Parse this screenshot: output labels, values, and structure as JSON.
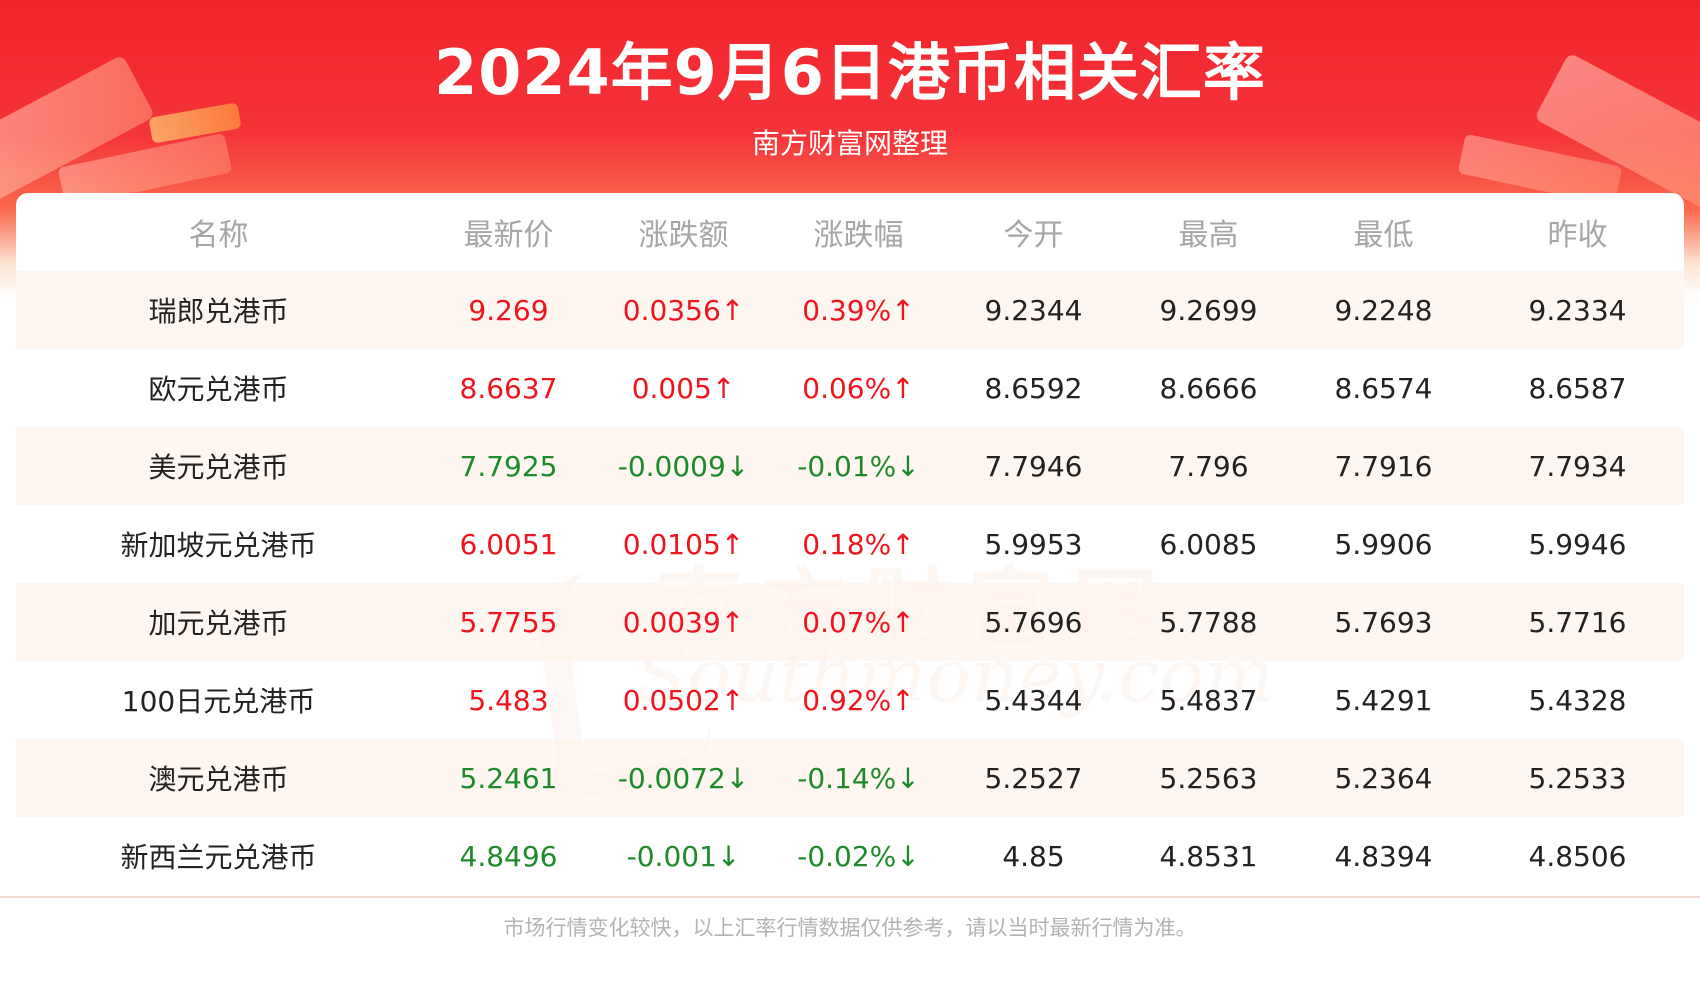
{
  "header": {
    "title": "2024年9月6日港币相关汇率",
    "subtitle": "南方财富网整理"
  },
  "table": {
    "columns": [
      "名称",
      "最新价",
      "涨跌额",
      "涨跌幅",
      "今开",
      "最高",
      "最低",
      "昨收"
    ],
    "rows": [
      {
        "name": "瑞郎兑港币",
        "latest": "9.269",
        "change": "0.0356↑",
        "pct": "0.39%↑",
        "open": "9.2344",
        "high": "9.2699",
        "low": "9.2248",
        "prev_close": "9.2334",
        "trend": "up"
      },
      {
        "name": "欧元兑港币",
        "latest": "8.6637",
        "change": "0.005↑",
        "pct": "0.06%↑",
        "open": "8.6592",
        "high": "8.6666",
        "low": "8.6574",
        "prev_close": "8.6587",
        "trend": "up"
      },
      {
        "name": "美元兑港币",
        "latest": "7.7925",
        "change": "-0.0009↓",
        "pct": "-0.01%↓",
        "open": "7.7946",
        "high": "7.796",
        "low": "7.7916",
        "prev_close": "7.7934",
        "trend": "down"
      },
      {
        "name": "新加坡元兑港币",
        "latest": "6.0051",
        "change": "0.0105↑",
        "pct": "0.18%↑",
        "open": "5.9953",
        "high": "6.0085",
        "low": "5.9906",
        "prev_close": "5.9946",
        "trend": "up"
      },
      {
        "name": "加元兑港币",
        "latest": "5.7755",
        "change": "0.0039↑",
        "pct": "0.07%↑",
        "open": "5.7696",
        "high": "5.7788",
        "low": "5.7693",
        "prev_close": "5.7716",
        "trend": "up"
      },
      {
        "name": "100日元兑港币",
        "latest": "5.483",
        "change": "0.0502↑",
        "pct": "0.92%↑",
        "open": "5.4344",
        "high": "5.4837",
        "low": "5.4291",
        "prev_close": "5.4328",
        "trend": "up"
      },
      {
        "name": "澳元兑港币",
        "latest": "5.2461",
        "change": "-0.0072↓",
        "pct": "-0.14%↓",
        "open": "5.2527",
        "high": "5.2563",
        "low": "5.2364",
        "prev_close": "5.2533",
        "trend": "down"
      },
      {
        "name": "新西兰元兑港币",
        "latest": "4.8496",
        "change": "-0.001↓",
        "pct": "-0.02%↓",
        "open": "4.85",
        "high": "4.8531",
        "low": "4.8394",
        "prev_close": "4.8506",
        "trend": "down"
      }
    ]
  },
  "watermark": {
    "cn": "南方财富网",
    "en": "Southmoney.com"
  },
  "footer": {
    "disclaimer": "市场行情变化较快，以上汇率行情数据仅供参考，请以当时最新行情为准。"
  },
  "colors": {
    "banner_red": "#f2242b",
    "up": "#f0141e",
    "down": "#1f8a2b"
  }
}
